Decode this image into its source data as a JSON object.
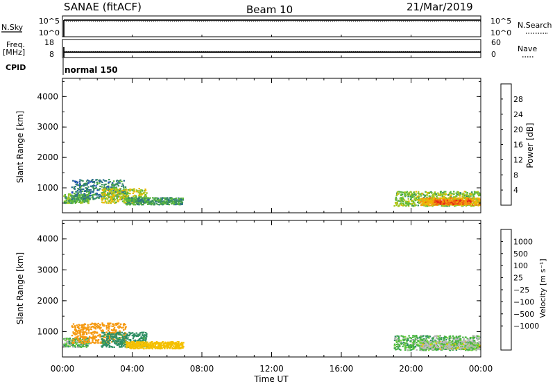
{
  "header": {
    "station": "SANAE (fitACF)",
    "beam": "Beam 10",
    "date": "21/Mar/2019"
  },
  "nsky_panel": {
    "left_label": "N.Sky",
    "left_ticks": [
      "10^5",
      "10^0"
    ],
    "right_ticks": [
      "10^5",
      "10^0"
    ],
    "right_label": "N.Search",
    "level_fraction": 0.9
  },
  "freq_panel": {
    "left_label_1": "Freq.",
    "left_label_2": "[MHz]",
    "left_ticks": [
      "18",
      "8"
    ],
    "right_ticks": [
      "60",
      "0"
    ],
    "right_label": "Nave",
    "freq_mhz": 11,
    "nave": 20
  },
  "cpid": {
    "label": "CPID",
    "mode": "normal 150"
  },
  "chart_data": [
    {
      "type": "heatmap",
      "name_shown": "Power",
      "ylabel": "Slant Range [km]",
      "ylim": [
        180,
        4600
      ],
      "yticks": [
        "4000",
        "3000",
        "2000",
        "1000"
      ],
      "colorbar": {
        "label": "Power [dB]",
        "ticks": [
          "28",
          "24",
          "20",
          "16",
          "12",
          "8",
          "4"
        ],
        "tick_values": [
          28,
          24,
          20,
          16,
          12,
          8,
          4
        ],
        "range": [
          0,
          32
        ],
        "colors": [
          "#0d1fe8",
          "#1e48c8",
          "#2a6d90",
          "#3a9060",
          "#5ab83a",
          "#a5c822",
          "#f0b800",
          "#f39a10",
          "#ee6410",
          "#e52518"
        ]
      },
      "clusters": [
        {
          "t0": 0.0,
          "t1": 1.5,
          "r0": 520,
          "r1": 820,
          "value": 14
        },
        {
          "t0": 0.5,
          "t1": 3.6,
          "r0": 640,
          "r1": 1300,
          "value": 10
        },
        {
          "t0": 2.2,
          "t1": 4.8,
          "r0": 520,
          "r1": 1000,
          "value": 18
        },
        {
          "t0": 3.6,
          "t1": 6.9,
          "r0": 470,
          "r1": 700,
          "value": 12
        },
        {
          "t0": 19.0,
          "t1": 24.0,
          "r0": 420,
          "r1": 900,
          "value": 16
        },
        {
          "t0": 20.5,
          "t1": 24.0,
          "r0": 450,
          "r1": 700,
          "value": 22
        },
        {
          "t0": 21.2,
          "t1": 23.4,
          "r0": 480,
          "r1": 620,
          "value": 27
        }
      ]
    },
    {
      "type": "heatmap",
      "name_shown": "Velocity",
      "ylabel": "Slant Range [km]",
      "ylim": [
        180,
        4600
      ],
      "yticks": [
        "4000",
        "3000",
        "2000",
        "1000"
      ],
      "colorbar": {
        "label": "Velocity [m s⁻¹]",
        "ticks": [
          "1000",
          "500",
          "100",
          "25",
          "−25",
          "−100",
          "−500",
          "−1000"
        ],
        "tick_values": [
          1000,
          500,
          100,
          25,
          -25,
          -100,
          -500,
          -1000
        ],
        "colors": [
          "#1e3ee0",
          "#2a6cb0",
          "#2f8f64",
          "#4ab642",
          "#7bdc3a",
          "#b8b8b8",
          "#f4c000",
          "#f59a12",
          "#f06510",
          "#e72418"
        ]
      },
      "clusters": [
        {
          "t0": 0.0,
          "t1": 1.5,
          "r0": 520,
          "r1": 820,
          "value": 60
        },
        {
          "t0": 0.5,
          "t1": 3.6,
          "r0": 640,
          "r1": 1300,
          "value": -150
        },
        {
          "t0": 2.2,
          "t1": 4.8,
          "r0": 520,
          "r1": 1000,
          "value": 220
        },
        {
          "t0": 3.6,
          "t1": 6.9,
          "r0": 470,
          "r1": 700,
          "value": -60
        },
        {
          "t0": 19.0,
          "t1": 24.0,
          "r0": 420,
          "r1": 900,
          "value": 60
        },
        {
          "t0": 20.5,
          "t1": 24.0,
          "r0": 450,
          "r1": 700,
          "value": 15
        }
      ]
    }
  ],
  "x_axis": {
    "ticks": [
      "00:00",
      "04:00",
      "08:00",
      "12:00",
      "16:00",
      "20:00",
      "00:00"
    ],
    "tick_hours": [
      0,
      4,
      8,
      12,
      16,
      20,
      24
    ],
    "label": "Time UT"
  }
}
